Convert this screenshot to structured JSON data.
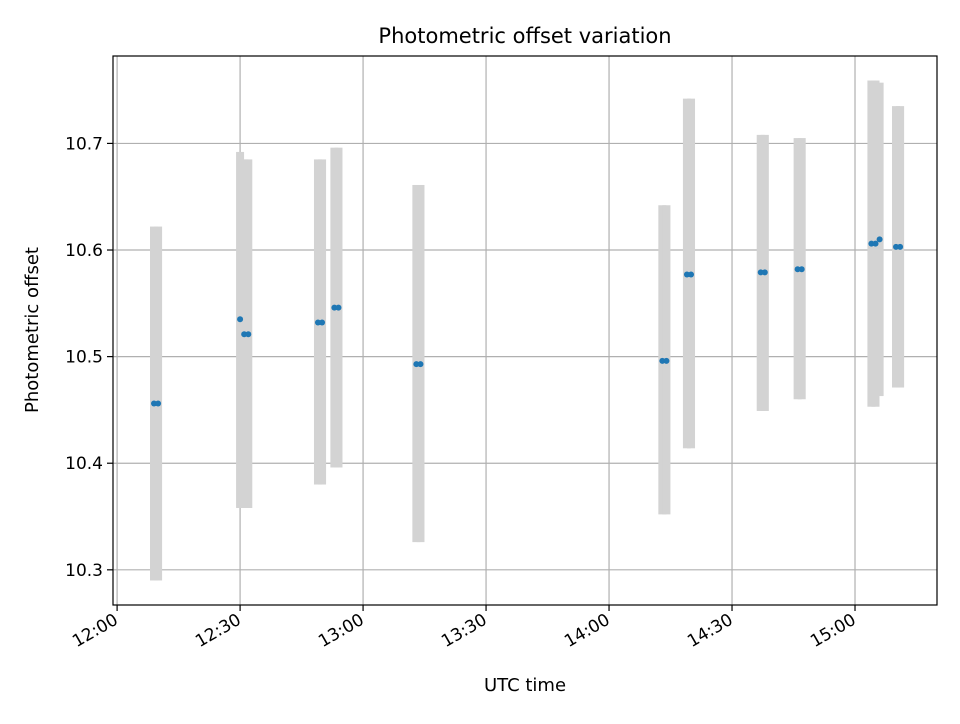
{
  "chart_data": {
    "type": "scatter",
    "title": "Photometric offset variation",
    "xlabel": "UTC time",
    "ylabel": "Photometric offset",
    "xlim": [
      "11:59",
      "15:20"
    ],
    "ylim": [
      10.267,
      10.782
    ],
    "x_ticks": [
      "12:00",
      "12:30",
      "13:00",
      "13:30",
      "14:00",
      "14:30",
      "15:00"
    ],
    "y_ticks": [
      10.3,
      10.4,
      10.5,
      10.6,
      10.7
    ],
    "grid": true,
    "colors": {
      "point": "#1f77b4",
      "errorbar": "#d3d3d3",
      "grid": "#b0b0b0"
    },
    "points": [
      {
        "x": "12:09",
        "y": 10.456,
        "low": 10.29,
        "high": 10.622
      },
      {
        "x": "12:10",
        "y": 10.456,
        "low": 10.29,
        "high": 10.622
      },
      {
        "x": "12:30",
        "y": 10.535,
        "low": 10.358,
        "high": 10.692
      },
      {
        "x": "12:31",
        "y": 10.521,
        "low": 10.358,
        "high": 10.685
      },
      {
        "x": "12:32",
        "y": 10.521,
        "low": 10.358,
        "high": 10.685
      },
      {
        "x": "12:49",
        "y": 10.532,
        "low": 10.38,
        "high": 10.685
      },
      {
        "x": "12:50",
        "y": 10.532,
        "low": 10.38,
        "high": 10.685
      },
      {
        "x": "12:53",
        "y": 10.546,
        "low": 10.396,
        "high": 10.696
      },
      {
        "x": "12:54",
        "y": 10.546,
        "low": 10.396,
        "high": 10.696
      },
      {
        "x": "13:13",
        "y": 10.493,
        "low": 10.326,
        "high": 10.661
      },
      {
        "x": "13:14",
        "y": 10.493,
        "low": 10.326,
        "high": 10.661
      },
      {
        "x": "14:13",
        "y": 10.496,
        "low": 10.352,
        "high": 10.642
      },
      {
        "x": "14:14",
        "y": 10.496,
        "low": 10.352,
        "high": 10.642
      },
      {
        "x": "14:19",
        "y": 10.577,
        "low": 10.414,
        "high": 10.742
      },
      {
        "x": "14:20",
        "y": 10.577,
        "low": 10.414,
        "high": 10.742
      },
      {
        "x": "14:37",
        "y": 10.579,
        "low": 10.449,
        "high": 10.708
      },
      {
        "x": "14:38",
        "y": 10.579,
        "low": 10.449,
        "high": 10.708
      },
      {
        "x": "14:46",
        "y": 10.582,
        "low": 10.46,
        "high": 10.705
      },
      {
        "x": "14:47",
        "y": 10.582,
        "low": 10.46,
        "high": 10.705
      },
      {
        "x": "15:04",
        "y": 10.606,
        "low": 10.453,
        "high": 10.759
      },
      {
        "x": "15:05",
        "y": 10.606,
        "low": 10.453,
        "high": 10.759
      },
      {
        "x": "15:06",
        "y": 10.61,
        "low": 10.463,
        "high": 10.757
      },
      {
        "x": "15:10",
        "y": 10.603,
        "low": 10.471,
        "high": 10.735
      },
      {
        "x": "15:11",
        "y": 10.603,
        "low": 10.471,
        "high": 10.735
      }
    ]
  }
}
